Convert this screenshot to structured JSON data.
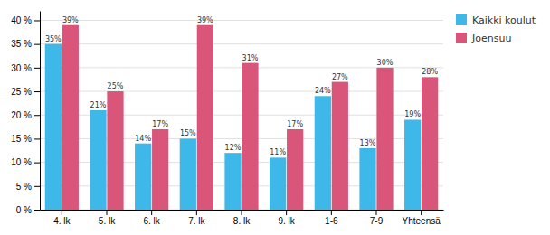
{
  "chart_data": {
    "type": "bar",
    "categories": [
      "4. lk",
      "5. lk",
      "6. lk",
      "7. lk",
      "8. lk",
      "9. lk",
      "1-6",
      "7-9",
      "Yhteensä"
    ],
    "series": [
      {
        "name": "Kaikki koulut",
        "color": "#3db8e8",
        "values": [
          35,
          21,
          14,
          15,
          12,
          11,
          24,
          13,
          19
        ],
        "value_labels": [
          "35%",
          "21%",
          "14%",
          "15%",
          "12%",
          "11%",
          "24%",
          "13%",
          "19%"
        ]
      },
      {
        "name": "Joensuu",
        "color": "#d9567a",
        "values": [
          39,
          25,
          17,
          39,
          31,
          17,
          27,
          30,
          28
        ],
        "value_labels": [
          "39%",
          "25%",
          "17%",
          "39%",
          "31%",
          "17%",
          "27%",
          "30%",
          "28%"
        ]
      }
    ],
    "ylim": [
      0,
      42
    ],
    "yticks": [
      {
        "value": 0,
        "label": "0 %"
      },
      {
        "value": 5,
        "label": "5 %"
      },
      {
        "value": 10,
        "label": "10 %"
      },
      {
        "value": 15,
        "label": "15 %"
      },
      {
        "value": 20,
        "label": "20 %"
      },
      {
        "value": 25,
        "label": "25 %"
      },
      {
        "value": 30,
        "label": "30 %"
      },
      {
        "value": 35,
        "label": "35 %"
      },
      {
        "value": 40,
        "label": "40 %"
      }
    ],
    "grid": true,
    "data_labels": true,
    "legend": "right"
  }
}
